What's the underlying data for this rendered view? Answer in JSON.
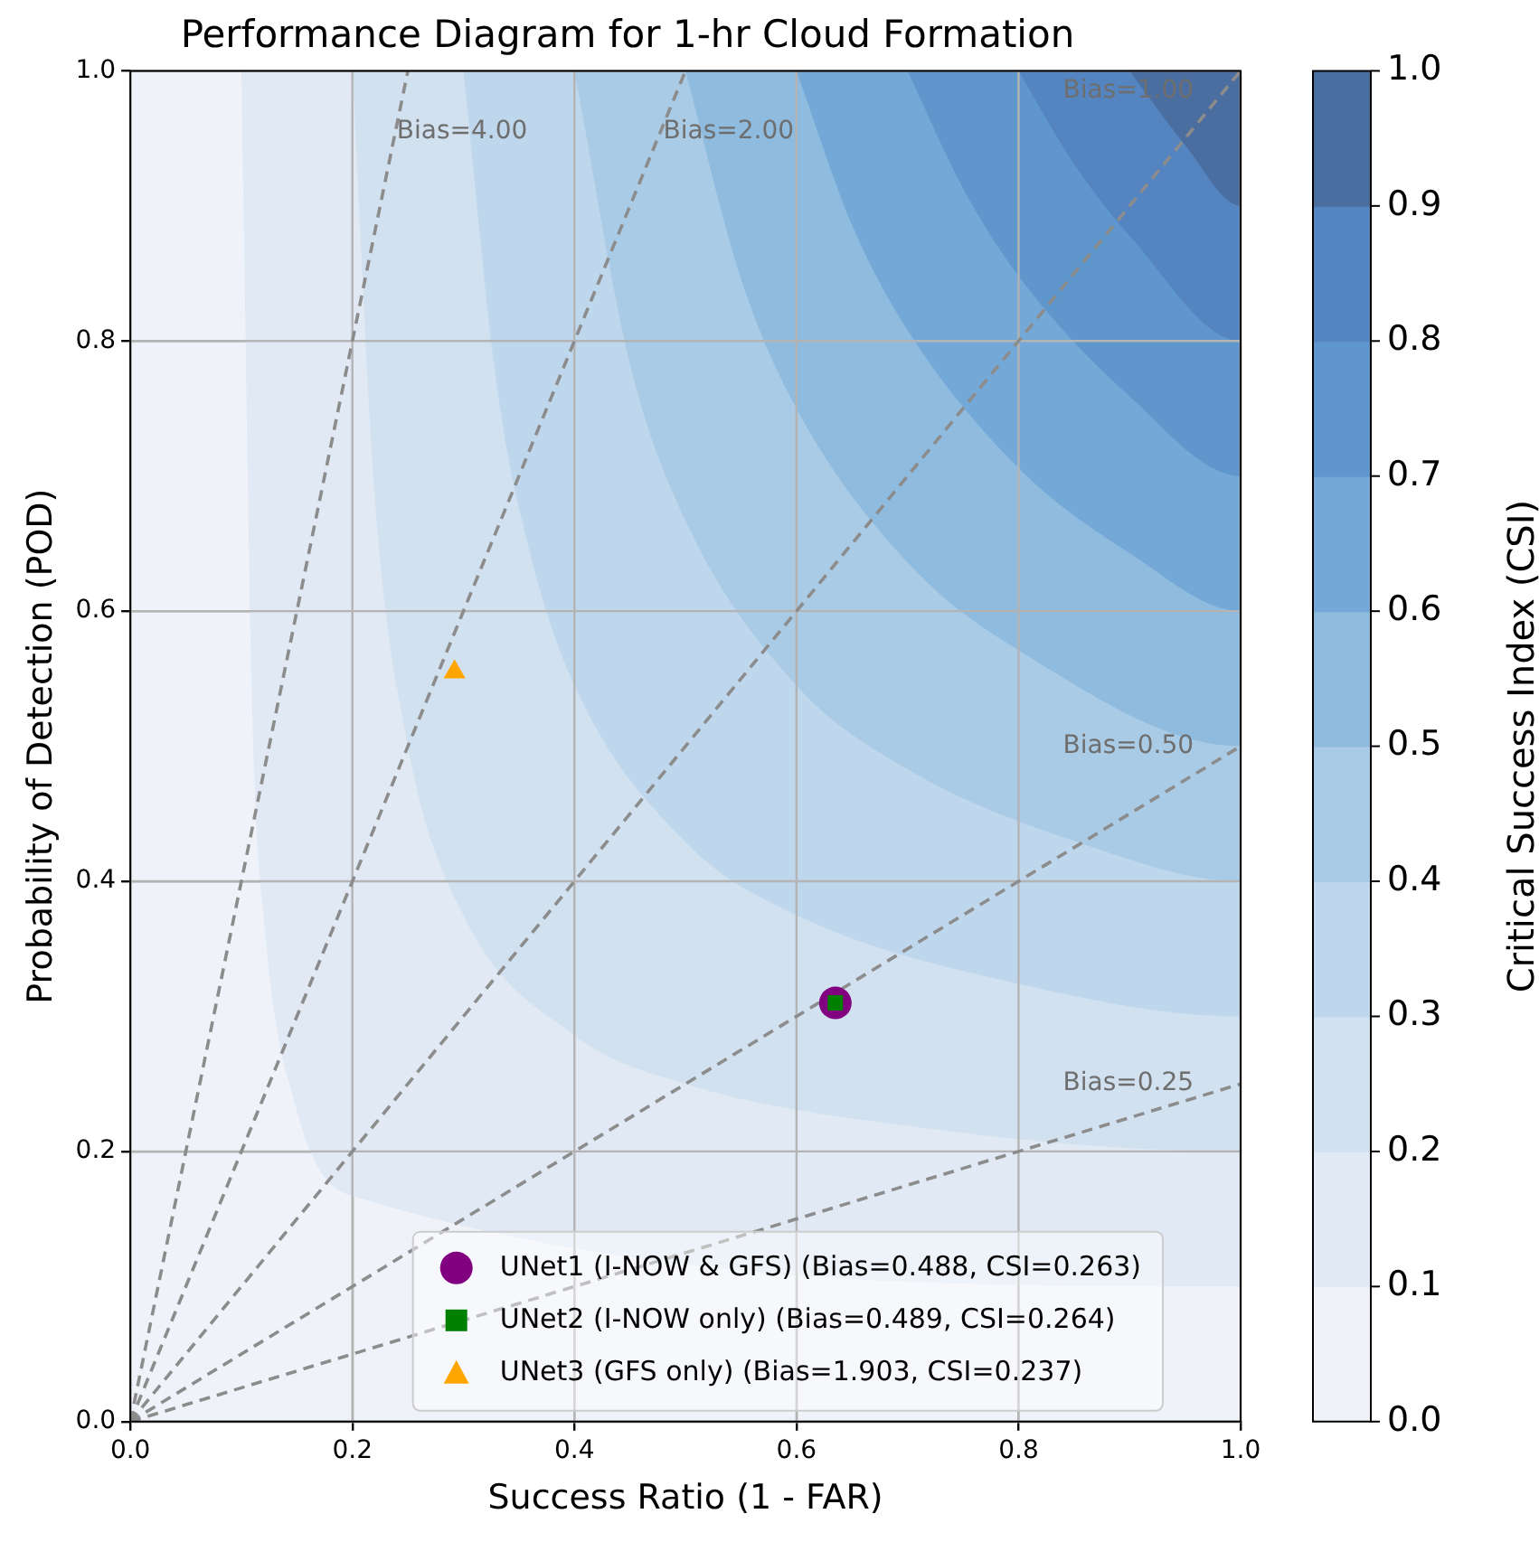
{
  "chart_data": {
    "type": "scatter",
    "title": "Performance Diagram for 1-hr Cloud Formation",
    "xlabel": "Success Ratio (1 - FAR)",
    "ylabel": "Probability of Detection (POD)",
    "clabel": "Critical Success Index (CSI)",
    "xlim": [
      0,
      1
    ],
    "ylim": [
      0,
      1
    ],
    "xticks": [
      {
        "value": 0,
        "label": "0.0"
      },
      0.2,
      0.4,
      0.6,
      0.8,
      {
        "value": 1,
        "label": "1.0"
      }
    ],
    "yticks": [
      {
        "value": 0,
        "label": "0.0"
      },
      0.2,
      0.4,
      0.6,
      0.8,
      {
        "value": 1,
        "label": "1.0"
      }
    ],
    "clim": [
      0,
      1
    ],
    "cticks": [
      {
        "value": 0,
        "label": "0.0"
      },
      0.1,
      0.2,
      0.3,
      0.4,
      0.5,
      0.6,
      0.7,
      0.8,
      0.9,
      {
        "value": 1,
        "label": "1.0"
      }
    ],
    "grid": true,
    "legend": "bottom right",
    "series": [
      {
        "type": "area",
        "x": [
          0.1,
          0.11,
          0.12,
          0.15,
          0.2,
          0.3,
          0.5,
          0.7,
          1,
          1
        ],
        "values": [
          1,
          0.52,
          0.375,
          0.23,
          0.167,
          null,
          null,
          null,
          0.1,
          1
        ],
        "color": "#e0e9f4",
        "marker": "none"
      },
      {
        "type": "area",
        "x": [
          0.2,
          0.22,
          0.25,
          0.3,
          0.4,
          0.5,
          0.7,
          1,
          1
        ],
        "values": [
          1,
          0.687,
          0.5,
          0.375,
          0.286,
          0.25,
          0.219,
          0.2,
          1
        ],
        "color": "#d2e1f0",
        "marker": "none"
      },
      {
        "type": "area",
        "x": [
          0.3,
          0.33,
          0.36,
          0.4,
          0.5,
          0.6,
          0.8,
          1,
          1
        ],
        "values": [
          1,
          0.767,
          0.643,
          0.545,
          0.429,
          0.375,
          0.324,
          0.3,
          1
        ],
        "color": "#bfd7ec",
        "marker": "none"
      },
      {
        "type": "area",
        "x": [
          0.4,
          0.45,
          0.5,
          0.6,
          0.7,
          0.85,
          1,
          1
        ],
        "values": [
          1,
          0.783,
          0.667,
          0.545,
          0.483,
          0.43,
          0.4,
          1
        ],
        "color": "#a9cbe6",
        "marker": "none"
      },
      {
        "type": "area",
        "x": [
          0.5,
          0.55,
          0.6,
          0.7,
          0.8,
          1,
          1
        ],
        "values": [
          1,
          0.846,
          0.75,
          0.636,
          0.571,
          0.5,
          1
        ],
        "color": "#8fbbdf",
        "marker": "none"
      },
      {
        "type": "area",
        "x": [
          0.6,
          0.65,
          0.7,
          0.8,
          0.9,
          1,
          1
        ],
        "values": [
          1,
          0.886,
          0.808,
          0.706,
          0.643,
          0.6,
          1
        ],
        "color": "#74a8d6",
        "marker": "none"
      },
      {
        "type": "area",
        "x": [
          0.7,
          0.75,
          0.8,
          0.9,
          1,
          1
        ],
        "values": [
          1,
          0.913,
          0.848,
          0.759,
          0.7,
          1
        ],
        "color": "#5f97cc",
        "marker": "none"
      },
      {
        "type": "area",
        "x": [
          0.8,
          0.85,
          0.9,
          1,
          1
        ],
        "values": [
          1,
          0.931,
          0.878,
          0.8,
          1
        ],
        "color": "#5485c0",
        "marker": "none"
      },
      {
        "type": "area",
        "x": [
          0.9,
          0.95,
          1,
          1
        ],
        "values": [
          1,
          0.945,
          0.9,
          1
        ],
        "color": "#4a6ea0",
        "marker": "none"
      },
      {
        "type": "line",
        "x": [
          0,
          0.25
        ],
        "values": [
          0,
          1
        ],
        "color": "#8c8c8c",
        "line_style": "dashed",
        "marker": "none"
      },
      {
        "type": "line",
        "x": [
          0,
          0.5
        ],
        "values": [
          0,
          1
        ],
        "color": "#8c8c8c",
        "line_style": "dashed",
        "marker": "none"
      },
      {
        "type": "line",
        "x": [
          0,
          1
        ],
        "values": [
          0,
          1
        ],
        "color": "#8c8c8c",
        "line_style": "dashed",
        "marker": "none"
      },
      {
        "type": "line",
        "x": [
          0,
          1
        ],
        "values": [
          0,
          0.5
        ],
        "color": "#8c8c8c",
        "line_style": "dashed",
        "marker": "none"
      },
      {
        "type": "line",
        "x": [
          0,
          1
        ],
        "values": [
          0,
          0.25
        ],
        "color": "#8c8c8c",
        "line_style": "dashed",
        "marker": "none"
      },
      {
        "type": "scatter",
        "name": "UNet1 (I-NOW & GFS) (Bias=0.488, CSI=0.263)",
        "x": [
          0.635
        ],
        "values": [
          0.31
        ],
        "color": "#800080",
        "marker": "circle"
      },
      {
        "type": "scatter",
        "name": "UNet2 (I-NOW only) (Bias=0.489, CSI=0.264)",
        "x": [
          0.635
        ],
        "values": [
          0.31
        ],
        "color": "#008000",
        "marker": "square"
      },
      {
        "type": "scatter",
        "name": "UNet3 (GFS only) (Bias=1.903, CSI=0.237)",
        "x": [
          0.292
        ],
        "values": [
          0.555
        ],
        "color": "#ffa500",
        "marker": "triangle"
      }
    ],
    "annotations": [
      {
        "text": "Bias=4.00",
        "x": 0.24,
        "y": 0.955
      },
      {
        "text": "Bias=2.00",
        "x": 0.48,
        "y": 0.955
      },
      "Bias=1.00",
      "Bias=0.50",
      "Bias=0.25"
    ]
  }
}
